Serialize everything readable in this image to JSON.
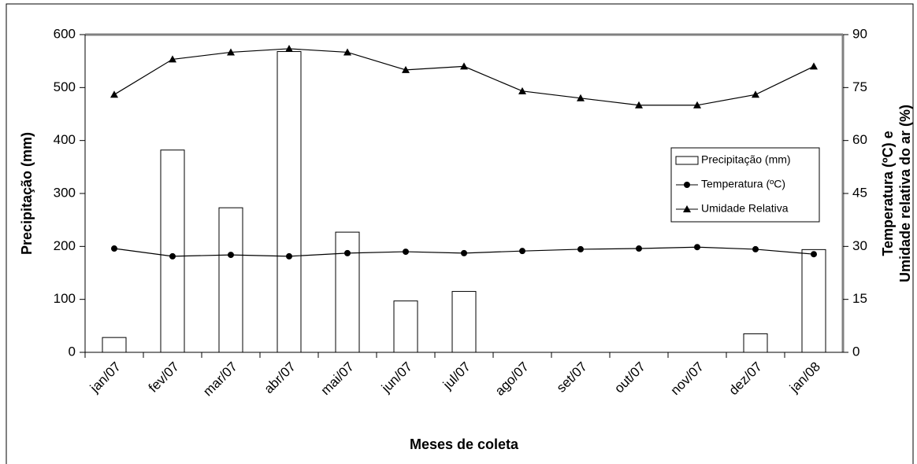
{
  "chart_data": {
    "type": "bar-line",
    "xlabel": "Meses de coleta",
    "ylabel": "Precipitação (mm)",
    "y2label": [
      "Temperatura (ºC) e",
      "Umidade relativa do ar (%)"
    ],
    "categories": [
      "jan/07",
      "fev/07",
      "mar/07",
      "abr/07",
      "mai/07",
      "jun/07",
      "jul/07",
      "ago/07",
      "set/07",
      "out/07",
      "nov/07",
      "dez/07",
      "jan/08"
    ],
    "series": [
      {
        "name": "Precipitação (mm)",
        "kind": "bar",
        "color": "#ffffff",
        "values": [
          28,
          382,
          273,
          568,
          227,
          97,
          115,
          0,
          0,
          0,
          0,
          35,
          194
        ]
      },
      {
        "name": "Temperatura (ºC)",
        "kind": "line",
        "marker": "circle",
        "axis": "y2",
        "color": "#000000",
        "values": [
          29.4,
          27.2,
          27.6,
          27.2,
          28.1,
          28.5,
          28.1,
          28.7,
          29.2,
          29.4,
          29.8,
          29.2,
          27.8
        ]
      },
      {
        "name": "Umidade Relativa",
        "kind": "line",
        "marker": "triangle",
        "axis": "y2",
        "color": "#000000",
        "values": [
          73,
          83,
          85,
          86,
          85,
          80,
          81,
          74,
          72,
          70,
          70,
          73,
          81
        ]
      }
    ],
    "ylim": [
      0,
      600
    ],
    "yticks": [
      0,
      100,
      200,
      300,
      400,
      500,
      600
    ],
    "y2lim": [
      0,
      90
    ],
    "y2ticks": [
      0,
      15,
      30,
      45,
      60,
      75,
      90
    ],
    "legend": "right"
  }
}
